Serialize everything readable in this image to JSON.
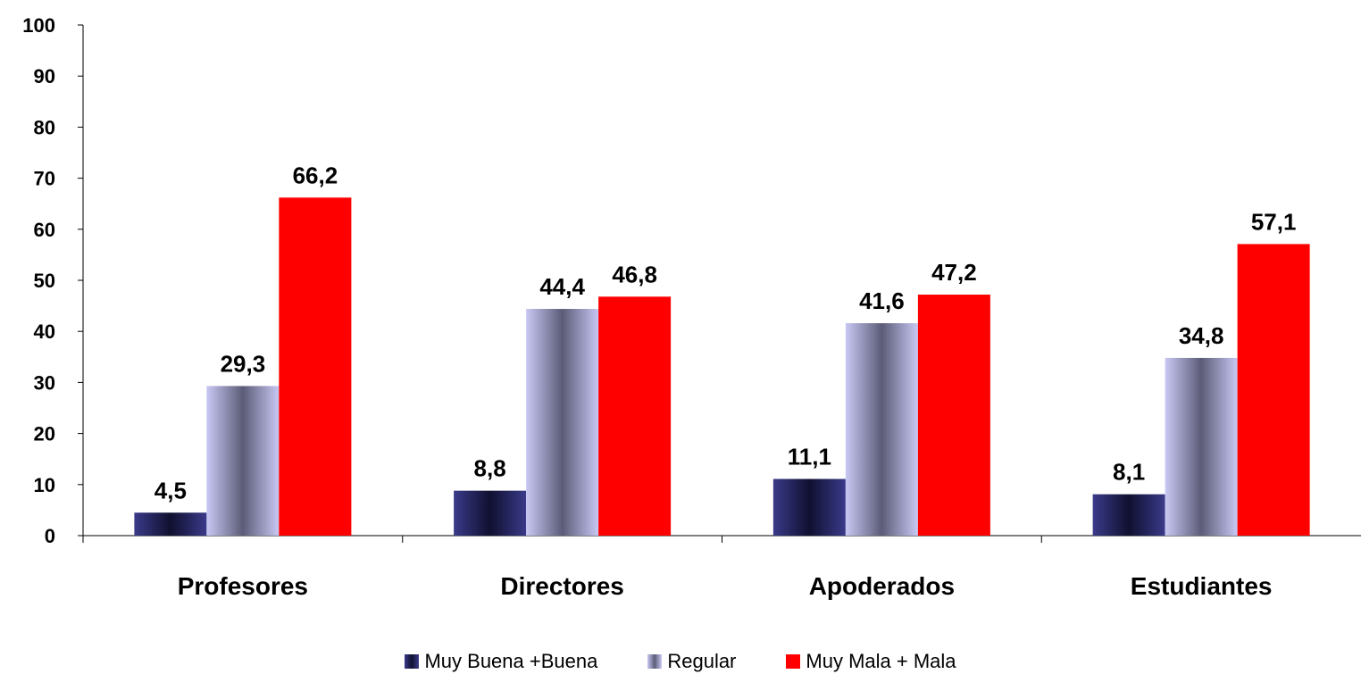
{
  "chart_data": {
    "type": "bar",
    "categories": [
      "Profesores",
      "Directores",
      "Apoderados",
      "Estudiantes"
    ],
    "series": [
      {
        "name": "Muy Buena +Buena",
        "values": [
          4.5,
          8.8,
          11.1,
          8.1
        ],
        "labels": [
          "4,5",
          "8,8",
          "11,1",
          "8,1"
        ],
        "color": "#1f1f5c"
      },
      {
        "name": "Regular",
        "values": [
          29.3,
          44.4,
          41.6,
          34.8
        ],
        "labels": [
          "29,3",
          "44,4",
          "41,6",
          "34,8"
        ],
        "color": "#b8b8e8"
      },
      {
        "name": "Muy Mala + Mala",
        "values": [
          66.2,
          46.8,
          47.2,
          57.1
        ],
        "labels": [
          "66,2",
          "46,8",
          "47,2",
          "57,1"
        ],
        "color": "#ff0000"
      }
    ],
    "yticks": [
      "0",
      "10",
      "20",
      "30",
      "40",
      "50",
      "60",
      "70",
      "80",
      "90",
      "100"
    ],
    "ylim": [
      0,
      100
    ],
    "grid": false,
    "legend_position": "bottom"
  }
}
